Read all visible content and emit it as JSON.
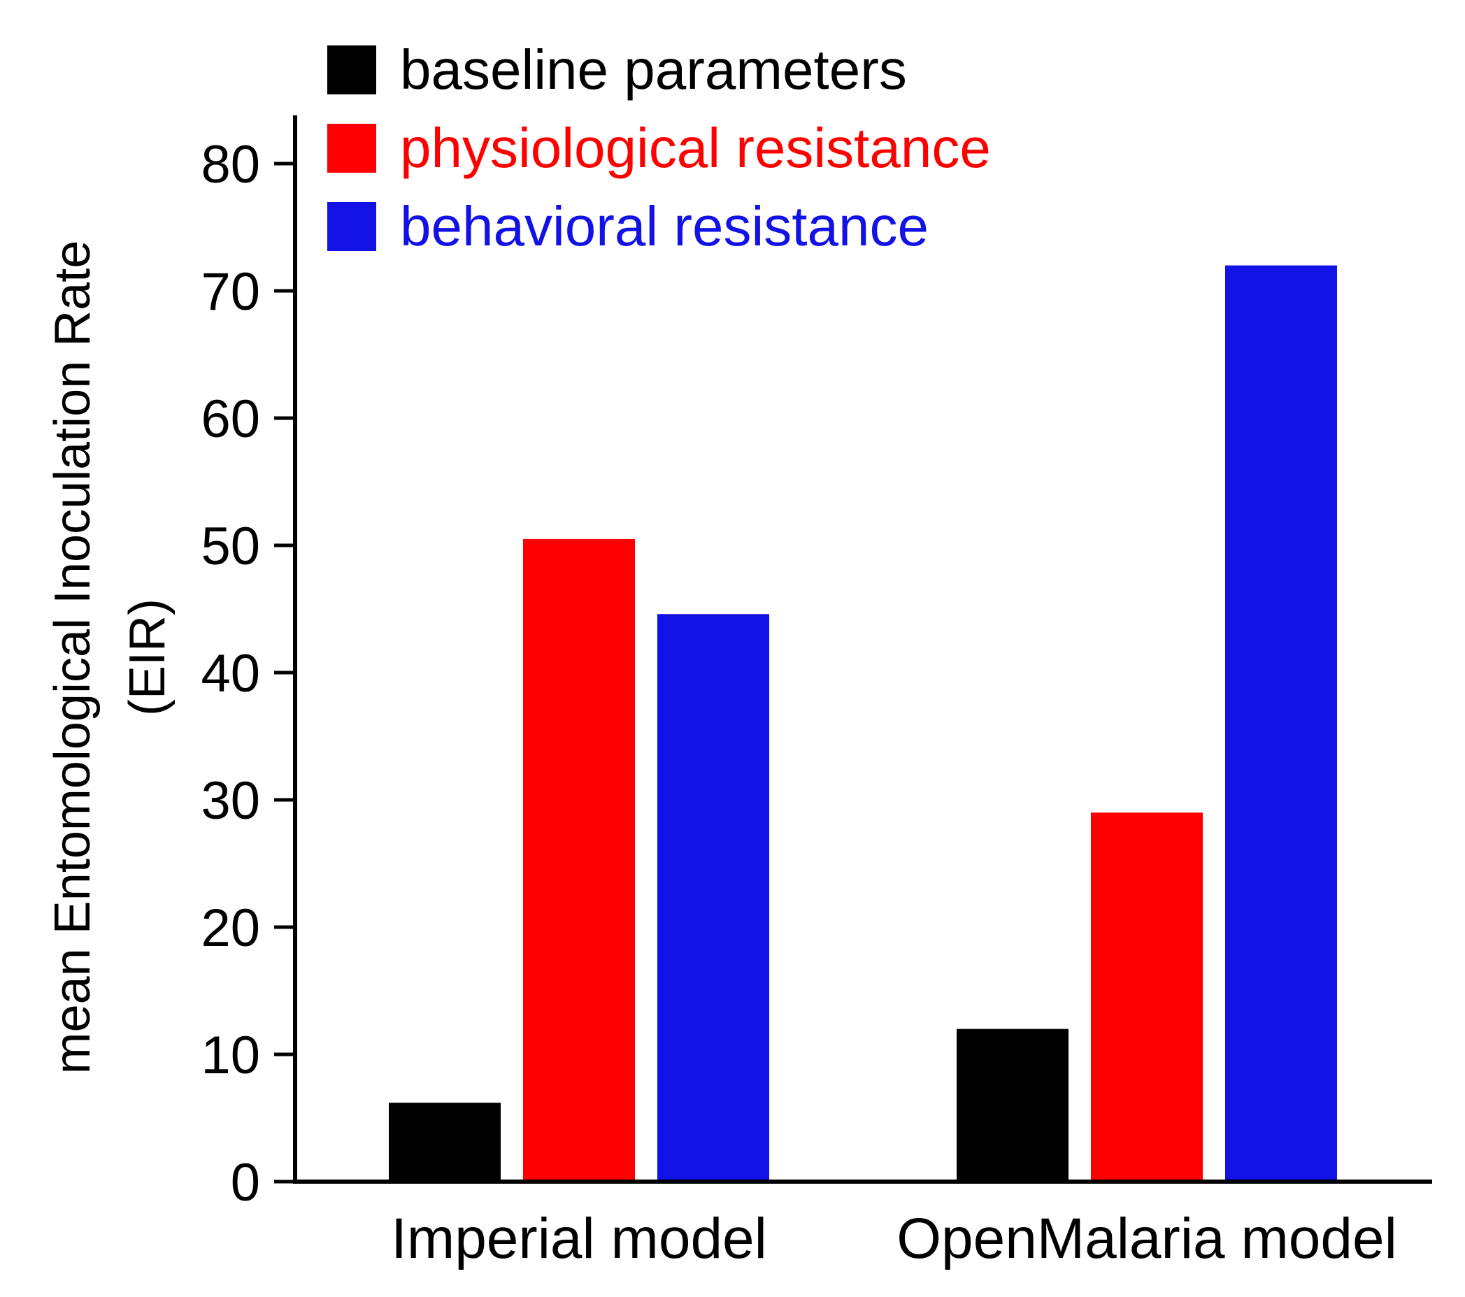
{
  "chart_data": {
    "type": "bar",
    "categories": [
      "Imperial model",
      "OpenMalaria model"
    ],
    "series": [
      {
        "name": "baseline parameters",
        "color": "#000000",
        "values": [
          6.2,
          12.0
        ]
      },
      {
        "name": "physiological resistance",
        "color": "#ff0000",
        "values": [
          50.5,
          29.0
        ]
      },
      {
        "name": "behavioral resistance",
        "color": "#1212e6",
        "values": [
          44.6,
          72.0
        ]
      }
    ],
    "ylabel": [
      "mean Entomological Inoculation Rate",
      "(EIR)"
    ],
    "xlabel": "",
    "ylim": [
      0,
      84
    ],
    "yticks": [
      "0",
      "10",
      "20",
      "30",
      "40",
      "50",
      "60",
      "70",
      "80"
    ],
    "grid": false,
    "legend_position": "top"
  }
}
